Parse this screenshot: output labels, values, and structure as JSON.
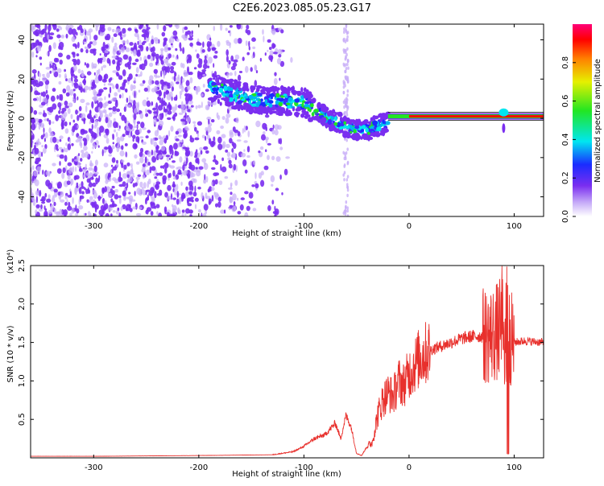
{
  "title": "C2E6.2023.085.05.23.G17",
  "colors": {
    "signal": "#e8302c",
    "spectrogram_dots": "#7a2ef0",
    "spectrogram_faint": "#c8aef8",
    "axis": "#000000",
    "background": "#ffffff"
  },
  "chart_data": [
    {
      "type": "heatmap",
      "title": "C2E6.2023.085.05.23.G17",
      "xlabel": "Height of straight line (km)",
      "ylabel": "Frequency (Hz)",
      "xlim": [
        -360,
        128
      ],
      "ylim": [
        -50,
        48
      ],
      "x_ticks": [
        -300,
        -200,
        -100,
        0,
        100
      ],
      "y_ticks": [
        -40,
        -20,
        0,
        20,
        40
      ],
      "grid": false,
      "description_series": [
        {
          "name": "ridge",
          "x": [
            -185,
            -160,
            -140,
            -120,
            -100,
            -85,
            -70,
            -55,
            -40,
            -25,
            -10,
            0,
            20,
            40,
            60,
            80,
            90,
            100,
            128
          ],
          "y": [
            15,
            11,
            9,
            9,
            8,
            3,
            -2,
            -5,
            -6,
            -3,
            0,
            1,
            1,
            1,
            1,
            1,
            3,
            1,
            1
          ]
        }
      ],
      "colorbar": {
        "label": "Normalized spectral amplitude",
        "ticks": [
          0.0,
          0.2,
          0.4,
          0.6,
          0.8
        ],
        "range": [
          0,
          1
        ],
        "colors": [
          "#ffffff",
          "#7a2ef0",
          "#1a2cff",
          "#00e6f0",
          "#22e622",
          "#e6f000",
          "#ff8000",
          "#ff0000",
          "#ff0077"
        ]
      }
    },
    {
      "type": "line",
      "xlabel": "Height of straight line (km)",
      "ylabel": "SNR (10 * v/v)",
      "y_multiplier_label": "(x10⁴)",
      "xlim": [
        -360,
        128
      ],
      "ylim": [
        0,
        2.5
      ],
      "x_ticks": [
        -300,
        -200,
        -100,
        0,
        100
      ],
      "y_ticks": [
        0.5,
        1.0,
        1.5,
        2.0,
        2.5
      ],
      "grid": false,
      "series": [
        {
          "x": [
            -360,
            -300,
            -200,
            -130,
            -110,
            -100,
            -90,
            -80,
            -70,
            -65,
            -60,
            -55,
            -50,
            -45,
            -40,
            -35,
            -30,
            -25,
            -20,
            -15,
            -10,
            -5,
            0,
            10,
            20,
            30,
            40,
            50,
            60,
            70,
            80,
            85,
            90,
            93,
            95,
            97,
            100,
            110,
            128
          ],
          "y": [
            0.02,
            0.02,
            0.03,
            0.04,
            0.08,
            0.15,
            0.25,
            0.3,
            0.45,
            0.25,
            0.55,
            0.4,
            0.06,
            0.03,
            0.15,
            0.2,
            0.55,
            0.75,
            0.85,
            0.8,
            1.0,
            0.95,
            1.1,
            1.3,
            1.4,
            1.45,
            1.5,
            1.55,
            1.58,
            1.58,
            1.6,
            1.65,
            1.7,
            1.2,
            1.6,
            1.55,
            1.5,
            1.52,
            1.5
          ]
        }
      ]
    }
  ]
}
